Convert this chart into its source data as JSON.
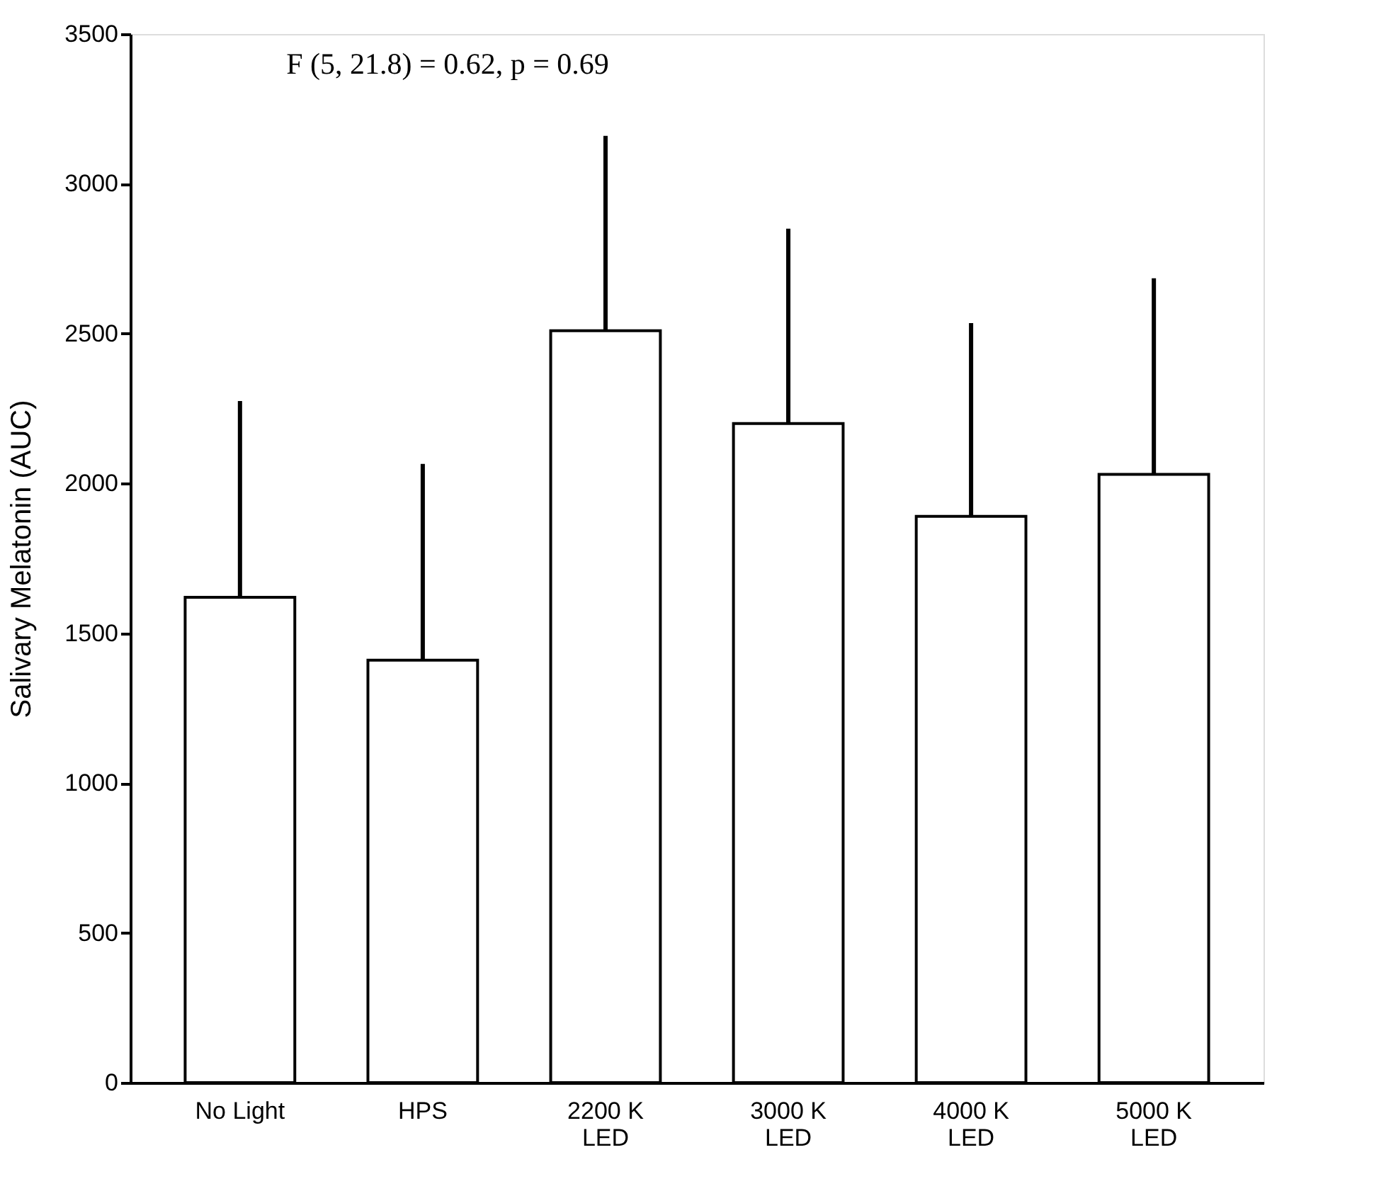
{
  "chart_data": {
    "type": "bar",
    "categories": [
      "No Light",
      "HPS",
      "2200 K LED",
      "3000 K LED",
      "4000 K LED",
      "5000 K LED"
    ],
    "values": [
      1620,
      1410,
      2510,
      2200,
      1890,
      2030
    ],
    "errors": [
      [
        1620,
        2275
      ],
      [
        1410,
        2065
      ],
      [
        2510,
        3160
      ],
      [
        2200,
        2850
      ],
      [
        1890,
        2535
      ],
      [
        2030,
        2685
      ]
    ],
    "color": "#ffffff",
    "ylabel": "Salivary Melatonin (AUC)",
    "ylim": [
      0,
      3500
    ],
    "yticks": [
      0,
      500,
      1000,
      1500,
      2000,
      2500,
      3000,
      3500
    ],
    "annotations": [
      "F (5, 21.8) = 0.62, p = 0.69"
    ],
    "grid": false
  }
}
